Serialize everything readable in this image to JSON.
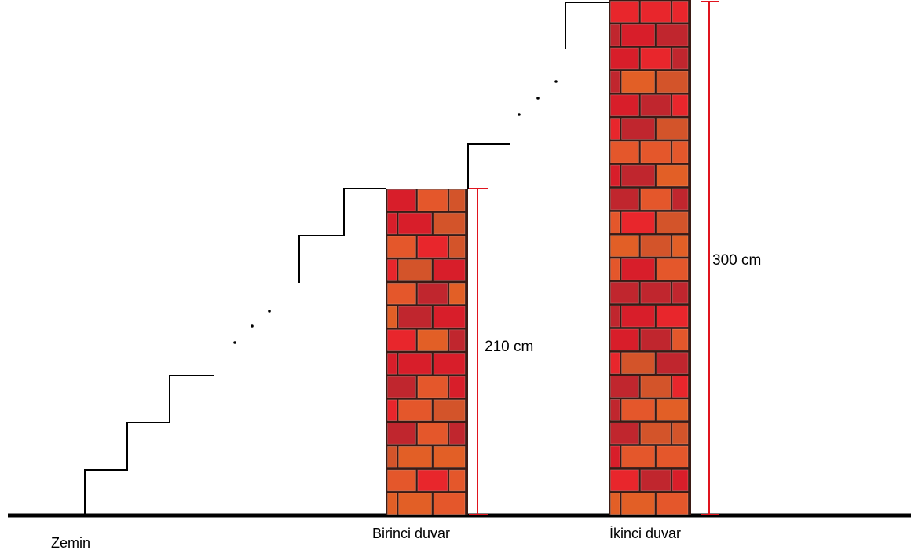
{
  "labels": {
    "ground": "Zemin",
    "first_wall": "Birinci duvar",
    "second_wall": "İkinci duvar"
  },
  "dimensions": {
    "first_wall_height": "210 cm",
    "second_wall_height": "300 cm"
  },
  "colors": {
    "ground_line": "#000000",
    "stair_line": "#000000",
    "dimension_line": "#e0141e",
    "brick_palette": [
      "#d81e2a",
      "#e8262c",
      "#e4572b",
      "#c0262e",
      "#d3542a",
      "#e25f26"
    ],
    "mortar": "#3a1a14"
  }
}
